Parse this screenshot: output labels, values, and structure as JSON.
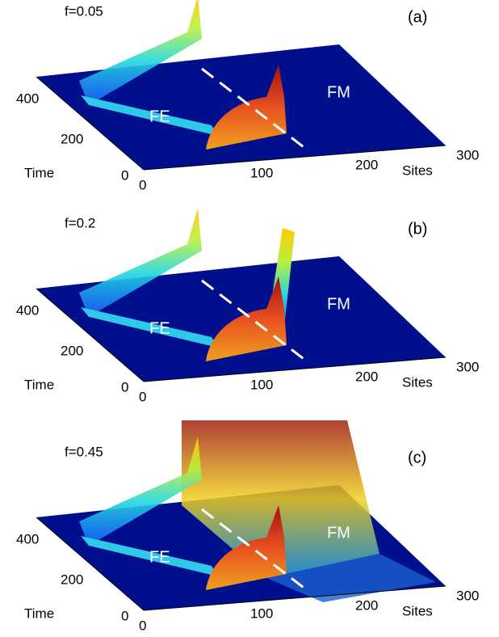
{
  "panels": [
    {
      "label": "(a)",
      "param": "f=0.05",
      "regions": [
        "FE",
        "FM"
      ],
      "time_label": "Time",
      "sites_label": "Sites",
      "time_ticks": [
        "0",
        "200",
        "400"
      ],
      "sites_ticks": [
        "0",
        "100",
        "200",
        "300"
      ]
    },
    {
      "label": "(b)",
      "param": "f=0.2",
      "regions": [
        "FE",
        "FM"
      ],
      "time_label": "Time",
      "sites_label": "Sites",
      "time_ticks": [
        "0",
        "200",
        "400"
      ],
      "sites_ticks": [
        "0",
        "100",
        "200",
        "300"
      ]
    },
    {
      "label": "(c)",
      "param": "f=0.45",
      "regions": [
        "FE",
        "FM"
      ],
      "time_label": "Time",
      "sites_label": "Sites",
      "time_ticks": [
        "0",
        "200",
        "400"
      ],
      "sites_ticks": [
        "0",
        "100",
        "200",
        "300"
      ]
    }
  ]
}
